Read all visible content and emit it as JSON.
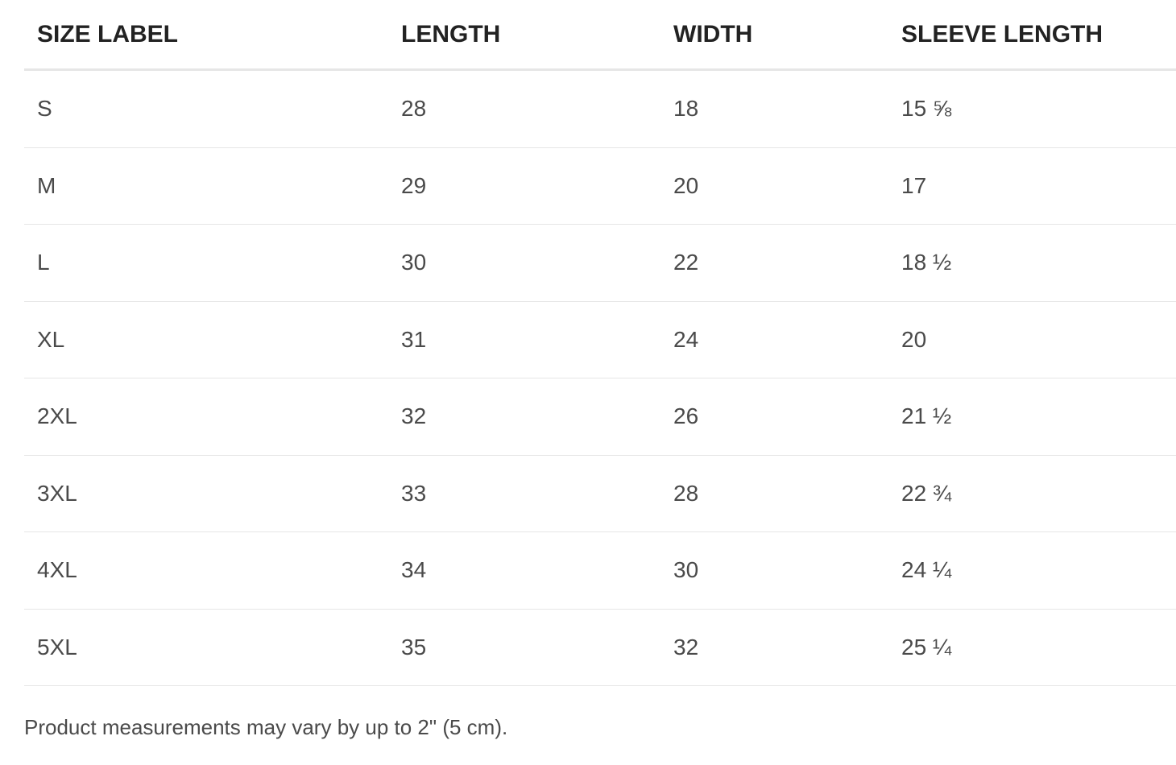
{
  "table": {
    "headers": [
      "SIZE LABEL",
      "LENGTH",
      "WIDTH",
      "SLEEVE LENGTH"
    ],
    "rows": [
      [
        "S",
        "28",
        "18",
        "15 ⅝"
      ],
      [
        "M",
        "29",
        "20",
        "17"
      ],
      [
        "L",
        "30",
        "22",
        "18 ½"
      ],
      [
        "XL",
        "31",
        "24",
        "20"
      ],
      [
        "2XL",
        "32",
        "26",
        "21 ½"
      ],
      [
        "3XL",
        "33",
        "28",
        "22 ¾"
      ],
      [
        "4XL",
        "34",
        "30",
        "24 ¼"
      ],
      [
        "5XL",
        "35",
        "32",
        "25 ¼"
      ]
    ]
  },
  "note": "Product measurements may vary by up to 2\" (5 cm)."
}
